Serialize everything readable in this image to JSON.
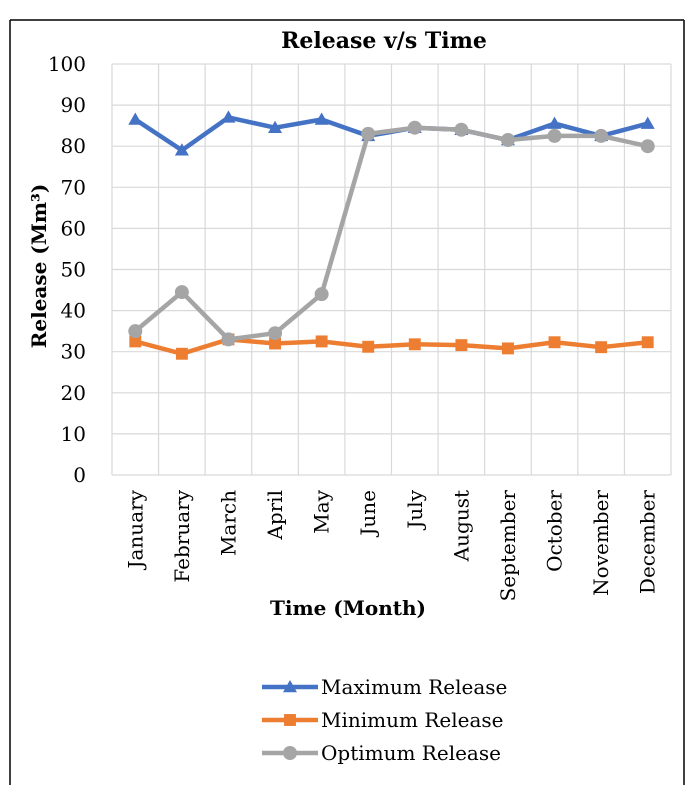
{
  "chart_data": {
    "type": "line",
    "title": "Release v/s Time",
    "xlabel": "Time (Month)",
    "ylabel": "Release (Mm³)",
    "categories": [
      "January",
      "February",
      "March",
      "April",
      "May",
      "June",
      "July",
      "August",
      "September",
      "October",
      "November",
      "December"
    ],
    "ylim": [
      0,
      100
    ],
    "yticks": [
      "0",
      "10",
      "20",
      "30",
      "40",
      "50",
      "60",
      "70",
      "80",
      "90",
      "100"
    ],
    "grid": true,
    "legend_position": "bottom",
    "series": [
      {
        "name": "Maximum Release",
        "marker": "triangle",
        "color": "#4472C4",
        "values": [
          86.5,
          79,
          87,
          84.5,
          86.5,
          82.5,
          84.5,
          84,
          81.5,
          85.5,
          82.5,
          85.5
        ]
      },
      {
        "name": "Minimum Release",
        "marker": "square",
        "color": "#ED7D31",
        "values": [
          32.5,
          29.5,
          33,
          32,
          32.5,
          31.2,
          31.8,
          31.6,
          30.8,
          32.3,
          31.1,
          32.3
        ]
      },
      {
        "name": "Optimum Release",
        "marker": "circle",
        "color": "#A5A5A5",
        "values": [
          35,
          44.5,
          33,
          34.5,
          44,
          83,
          84.5,
          84,
          81.5,
          82.5,
          82.5,
          80
        ]
      }
    ]
  }
}
